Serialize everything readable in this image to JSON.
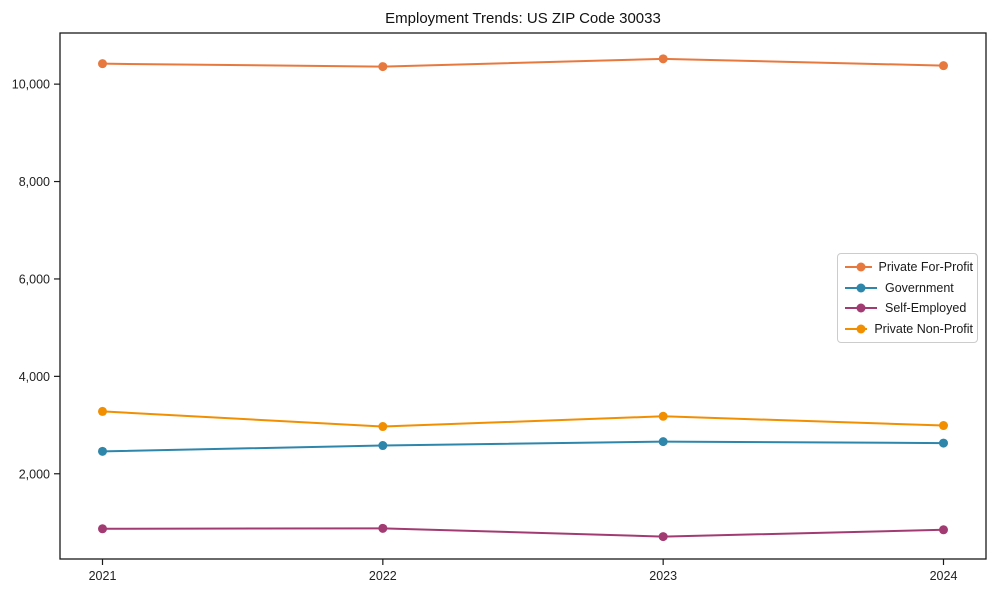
{
  "title": "Employment Trends: US ZIP Code 30033",
  "chart_data": {
    "type": "line",
    "title": "Employment Trends: US ZIP Code 30033",
    "xlabel": "",
    "ylabel": "",
    "grid": false,
    "x": [
      2021,
      2022,
      2023,
      2024
    ],
    "x_tick_labels": [
      "2021",
      "2022",
      "2023",
      "2024"
    ],
    "y_ticks": [
      2000,
      4000,
      6000,
      8000,
      10000
    ],
    "y_tick_labels": [
      "2,000",
      "4,000",
      "6,000",
      "8,000",
      "10,000"
    ],
    "ylim": [
      250,
      11050
    ],
    "legend_position": "center-right",
    "series": [
      {
        "name": "Private For-Profit",
        "color": "#E8793E",
        "values": [
          10420,
          10360,
          10520,
          10380
        ]
      },
      {
        "name": "Government",
        "color": "#2E86AB",
        "values": [
          2460,
          2580,
          2660,
          2630
        ]
      },
      {
        "name": "Self-Employed",
        "color": "#A23B72",
        "values": [
          870,
          880,
          710,
          850
        ]
      },
      {
        "name": "Private Non-Profit",
        "color": "#F18F01",
        "values": [
          3280,
          2970,
          3180,
          2990
        ]
      }
    ],
    "axis_color": "#1a1a1a",
    "legend_border_color": "#cccccc"
  }
}
